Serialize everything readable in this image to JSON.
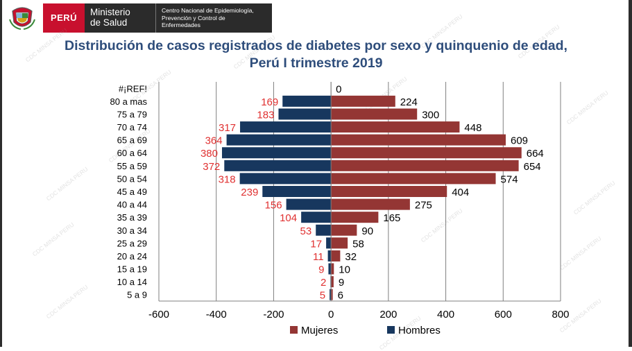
{
  "header": {
    "peru_label": "PERÚ",
    "ministerio_line1": "Ministerio",
    "ministerio_line2": "de Salud",
    "centro_line1": "Centro Nacional de Epidemiología,",
    "centro_line2": "Prevención y Control de",
    "centro_line3": "Enfermedades"
  },
  "title": {
    "line1": "Distribución de casos registrados de diabetes por sexo y quinquenio de edad,",
    "line2": "Perú I trimestre 2019"
  },
  "watermark_text": "CDC MINSA PERU",
  "colors": {
    "mujeres": "#943634",
    "hombres": "#17375e",
    "hombres_label": "#e03030",
    "title": "#2e4d7b",
    "peru_red": "#c8102e"
  },
  "chart_data": {
    "type": "bar",
    "orientation": "horizontal",
    "categories": [
      "#¡REF!",
      "80 a mas",
      "75 a 79",
      "70 a 74",
      "65 a 69",
      "60 a 64",
      "55 a 59",
      "50 a 54",
      "45 a 49",
      "40 a 44",
      "35 a 39",
      "30 a 34",
      "25 a 29",
      "20 a 24",
      "15 a 19",
      "10 a 14",
      "5 a 9"
    ],
    "series": [
      {
        "name": "Mujeres",
        "values": [
          0,
          224,
          300,
          448,
          609,
          664,
          654,
          574,
          404,
          275,
          165,
          90,
          58,
          32,
          10,
          9,
          6
        ]
      },
      {
        "name": "Hombres",
        "values": [
          0,
          -169,
          -183,
          -317,
          -364,
          -380,
          -372,
          -318,
          -239,
          -156,
          -104,
          -53,
          -17,
          -11,
          -9,
          -2,
          -5
        ]
      }
    ],
    "data_labels": {
      "Mujeres": [
        "0",
        "224",
        "300",
        "448",
        "609",
        "664",
        "654",
        "574",
        "404",
        "275",
        "165",
        "90",
        "58",
        "32",
        "10",
        "9",
        "6"
      ],
      "Hombres": [
        "",
        "169",
        "183",
        "317",
        "364",
        "380",
        "372",
        "318",
        "239",
        "156",
        "104",
        "53",
        "17",
        "11",
        "9",
        "2",
        "5"
      ]
    },
    "x_ticks": [
      -600,
      -400,
      -200,
      0,
      200,
      400,
      600,
      800
    ],
    "xlim": [
      -600,
      800
    ],
    "grid": "vertical",
    "legend_position": "bottom",
    "xlabel": "",
    "ylabel": ""
  }
}
